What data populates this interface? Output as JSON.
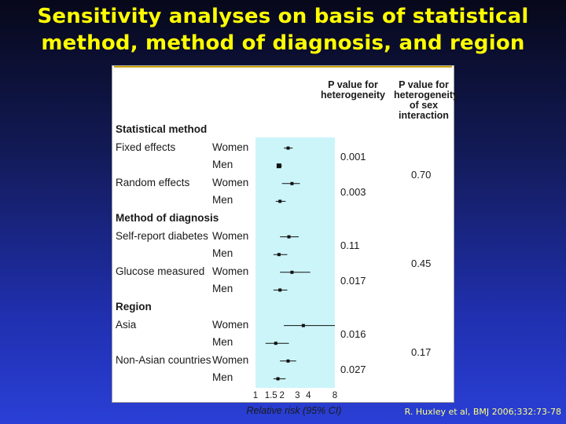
{
  "title_line1": "Sensitivity analyses on basis of statistical",
  "title_line2": "method, method of diagnosis, and region",
  "citation": "R. Huxley et al, BMJ  2006;332:73-78",
  "colors": {
    "title": "#ffff00",
    "shade": "#ccf5fa",
    "marker": "#111111"
  },
  "chart_data": {
    "type": "forest",
    "xlabel": "Relative risk (95% CI)",
    "x_scale": "log",
    "xlim": [
      1,
      8
    ],
    "xticks": [
      "1",
      "1.5",
      "2",
      "3",
      "4",
      "8"
    ],
    "shaded_region": [
      1,
      8
    ],
    "columns": [
      "P value for heterogeneity",
      "P value for heterogeneity of sex interaction"
    ],
    "groups": [
      {
        "heading": "Statistical method",
        "sex_interaction_p": "0.70",
        "subgroups": [
          {
            "name": "Fixed effects",
            "het_p": "0.001",
            "rows": [
              {
                "sex": "Women",
                "rr": 2.35,
                "lo": 2.1,
                "hi": 2.65
              },
              {
                "sex": "Men",
                "rr": 1.85,
                "lo": 1.75,
                "hi": 2.0
              }
            ]
          },
          {
            "name": "Random effects",
            "het_p": "0.003",
            "rows": [
              {
                "sex": "Women",
                "rr": 2.6,
                "lo": 2.0,
                "hi": 3.2
              },
              {
                "sex": "Men",
                "rr": 1.9,
                "lo": 1.7,
                "hi": 2.2
              }
            ]
          }
        ]
      },
      {
        "heading": "Method of diagnosis",
        "sex_interaction_p": "0.45",
        "subgroups": [
          {
            "name": "Self-report diabetes",
            "het_p": "0.11",
            "rows": [
              {
                "sex": "Women",
                "rr": 2.4,
                "lo": 1.9,
                "hi": 3.1
              },
              {
                "sex": "Men",
                "rr": 1.85,
                "lo": 1.6,
                "hi": 2.3
              }
            ]
          },
          {
            "name": "Glucose measured",
            "het_p": "0.017",
            "rows": [
              {
                "sex": "Women",
                "rr": 2.6,
                "lo": 1.9,
                "hi": 4.2
              },
              {
                "sex": "Men",
                "rr": 1.9,
                "lo": 1.6,
                "hi": 2.3
              }
            ]
          }
        ]
      },
      {
        "heading": "Region",
        "sex_interaction_p": "0.17",
        "subgroups": [
          {
            "name": "Asia",
            "het_p": "0.016",
            "rows": [
              {
                "sex": "Women",
                "rr": 3.5,
                "lo": 2.1,
                "hi": 8.0
              },
              {
                "sex": "Men",
                "rr": 1.7,
                "lo": 1.3,
                "hi": 2.4
              }
            ]
          },
          {
            "name": "Non-Asian countries",
            "het_p": "0.027",
            "rows": [
              {
                "sex": "Women",
                "rr": 2.35,
                "lo": 1.9,
                "hi": 2.9
              },
              {
                "sex": "Men",
                "rr": 1.8,
                "lo": 1.6,
                "hi": 2.2
              }
            ]
          }
        ]
      }
    ]
  }
}
